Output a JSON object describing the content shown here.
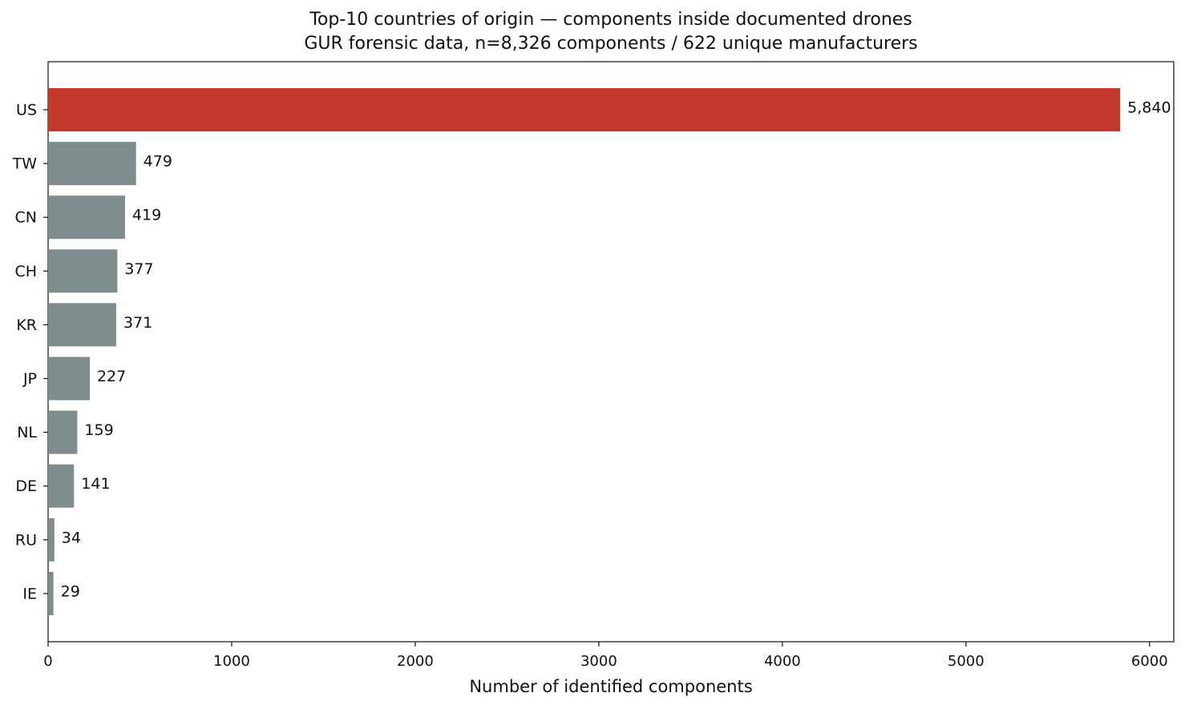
{
  "chart_data": {
    "type": "barh",
    "title": "Top-10 countries of origin — components inside documented drones",
    "subtitle": "GUR forensic data, n=8,326 components / 622 unique manufacturers",
    "x_label": "Number of identified components",
    "categories": [
      "US",
      "TW",
      "CN",
      "CH",
      "KR",
      "JP",
      "NL",
      "DE",
      "RU",
      "IE"
    ],
    "values": [
      5840,
      479,
      419,
      377,
      371,
      227,
      159,
      141,
      34,
      29
    ],
    "value_labels": [
      "5,840",
      "479",
      "419",
      "377",
      "371",
      "227",
      "159",
      "141",
      "34",
      "29"
    ],
    "colors": [
      "#c0392b",
      "#7f8c8d",
      "#7f8c8d",
      "#7f8c8d",
      "#7f8c8d",
      "#7f8c8d",
      "#7f8c8d",
      "#7f8c8d",
      "#7f8c8d",
      "#7f8c8d"
    ],
    "xlim": [
      0,
      6132
    ],
    "xticks": [
      0,
      1000,
      2000,
      3000,
      4000,
      5000,
      6000
    ],
    "grid": false
  }
}
